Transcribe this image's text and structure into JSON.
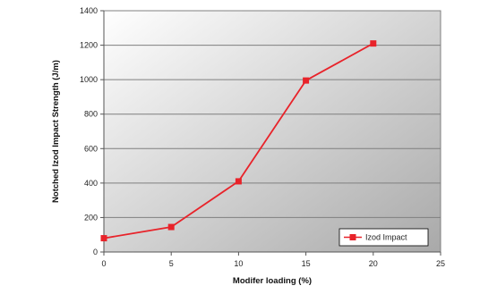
{
  "chart_data": {
    "type": "line",
    "title": "",
    "xlabel": "Modifer loading (%)",
    "ylabel": "Notched Izod Impact Strength (J/m)",
    "xlim": [
      0,
      25
    ],
    "ylim": [
      0,
      1400
    ],
    "xticks": [
      0,
      5,
      10,
      15,
      20,
      25
    ],
    "yticks": [
      0,
      200,
      400,
      600,
      800,
      1000,
      1200,
      1400
    ],
    "grid": "horizontal",
    "legend": "bottom-right",
    "series": [
      {
        "name": "Izod Impact",
        "color": "#e8232a",
        "marker": "square",
        "x": [
          0,
          5,
          10,
          15,
          20
        ],
        "y": [
          80,
          145,
          410,
          995,
          1210
        ]
      }
    ]
  }
}
